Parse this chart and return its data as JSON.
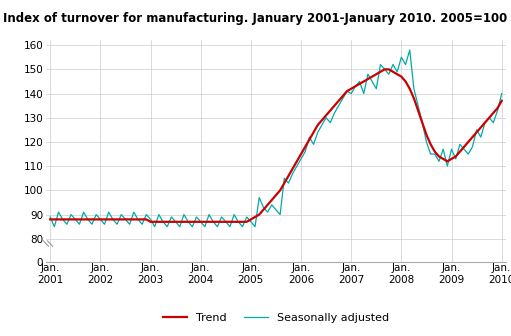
{
  "title": "Index of turnover for manufacturing. January 2001-January 2010. 2005=100",
  "trend_color": "#cc0000",
  "seasonal_color": "#00aaaa",
  "background_color": "#ffffff",
  "ylim_main": [
    78,
    162
  ],
  "ylim_break": [
    0,
    5
  ],
  "yticks": [
    80,
    90,
    100,
    110,
    120,
    130,
    140,
    150,
    160
  ],
  "ytick_break": [
    0
  ],
  "trend": [
    88,
    88,
    88,
    88,
    88,
    88,
    88,
    88,
    88,
    88,
    88,
    88,
    88,
    88,
    88,
    88,
    88,
    88,
    88,
    88,
    88,
    88,
    88,
    88,
    87,
    87,
    87,
    87,
    87,
    87,
    87,
    87,
    87,
    87,
    87,
    87,
    87,
    87,
    87,
    87,
    87,
    87,
    87,
    87,
    87,
    87,
    87,
    87,
    88,
    89,
    90,
    92,
    94,
    96,
    98,
    100,
    103,
    106,
    109,
    112,
    115,
    118,
    121,
    124,
    127,
    129,
    131,
    133,
    135,
    137,
    139,
    141,
    142,
    143,
    144,
    145,
    146,
    147,
    148,
    149,
    150,
    150,
    149,
    148,
    147,
    145,
    142,
    138,
    133,
    128,
    123,
    119,
    116,
    114,
    113,
    112,
    113,
    114,
    116,
    118,
    120,
    122,
    124,
    126,
    128,
    130,
    132,
    134,
    137
  ],
  "seasonal": [
    89,
    85,
    91,
    88,
    86,
    90,
    88,
    86,
    91,
    88,
    86,
    90,
    88,
    86,
    91,
    88,
    86,
    90,
    88,
    86,
    91,
    88,
    86,
    90,
    88,
    85,
    90,
    87,
    85,
    89,
    87,
    85,
    90,
    87,
    85,
    89,
    87,
    85,
    90,
    87,
    85,
    89,
    87,
    85,
    90,
    87,
    85,
    89,
    87,
    85,
    97,
    93,
    91,
    94,
    92,
    90,
    105,
    103,
    107,
    110,
    113,
    116,
    122,
    119,
    124,
    127,
    130,
    128,
    132,
    135,
    138,
    141,
    140,
    143,
    145,
    140,
    148,
    145,
    142,
    152,
    150,
    148,
    152,
    149,
    155,
    152,
    158,
    142,
    135,
    128,
    120,
    115,
    115,
    112,
    117,
    110,
    117,
    113,
    119,
    117,
    115,
    118,
    125,
    122,
    128,
    130,
    128,
    133,
    140
  ],
  "year_labels": [
    "Jan.\n2001",
    "Jan.\n2002",
    "Jan.\n2003",
    "Jan.\n2004",
    "Jan.\n2005",
    "Jan.\n2006",
    "Jan.\n2007",
    "Jan.\n2008",
    "Jan.\n2009",
    "Jan.\n2010"
  ]
}
